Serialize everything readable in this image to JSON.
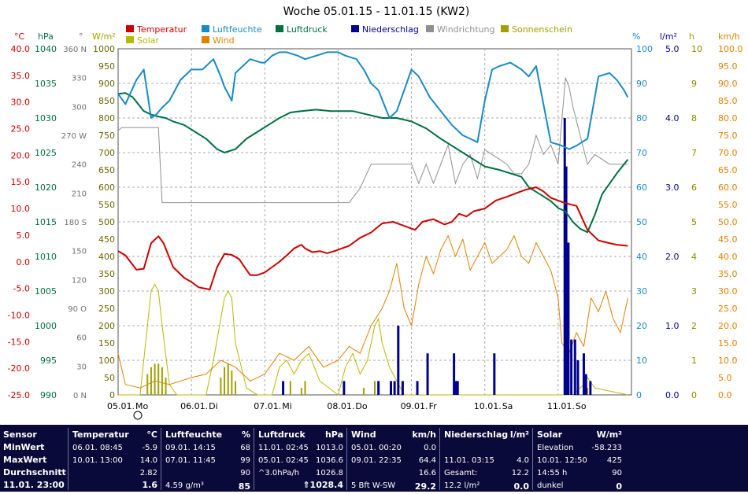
{
  "chart_data": {
    "type": "line",
    "title": "Woche 05.01.15 - 11.01.15 (KW2)",
    "x_range": [
      "2015-01-05 00:00",
      "2015-01-12 00:00"
    ],
    "x_day_labels": [
      {
        "date": "05.01.",
        "day": "Mo"
      },
      {
        "date": "06.01.",
        "day": "Di"
      },
      {
        "date": "07.01.",
        "day": "Mi"
      },
      {
        "date": "08.01.",
        "day": "Do"
      },
      {
        "date": "09.01.",
        "day": "Fr"
      },
      {
        "date": "10.01.",
        "day": "Sa"
      },
      {
        "date": "11.01.",
        "day": "So"
      }
    ],
    "legend": [
      {
        "name": "Temperatur",
        "color": "#cc0000"
      },
      {
        "name": "Luftfeuchte",
        "color": "#1a8ac4"
      },
      {
        "name": "Luftdruck",
        "color": "#007040"
      },
      {
        "name": "Niederschlag",
        "color": "#000090"
      },
      {
        "name": "Windrichtung",
        "color": "#909090"
      },
      {
        "name": "Sonnenschein",
        "color": "#a0a000"
      },
      {
        "name": "Solar",
        "color": "#b8b800"
      },
      {
        "name": "Wind",
        "color": "#e08000"
      }
    ],
    "axes": {
      "temperature": {
        "unit": "°C",
        "min": -25,
        "max": 40,
        "step": 5,
        "color": "#cc0000",
        "ticks": [
          "40.0",
          "35.0",
          "30.0",
          "25.0",
          "20.0",
          "15.0",
          "10.0",
          "5.0",
          "0.0",
          "-5.0",
          "-10.0",
          "-15.0",
          "-20.0",
          "-25.0"
        ]
      },
      "pressure": {
        "unit": "hPa",
        "min": 990,
        "max": 1040,
        "color": "#007040",
        "ticks": [
          "1040",
          "1035",
          "1030",
          "1025",
          "1020",
          "1015",
          "1010",
          "1005",
          "1000",
          "995",
          "990"
        ]
      },
      "direction": {
        "unit": "°",
        "color": "#707070",
        "ticks": [
          "360 N",
          "330",
          "300",
          "270 W",
          "240",
          "210",
          "180 S",
          "150",
          "120",
          "90 O",
          "60",
          "30",
          "0 N"
        ]
      },
      "solar": {
        "unit": "W/m²",
        "min": 0,
        "max": 1000,
        "color": "#a0a000",
        "ticks": [
          "1000",
          "950",
          "900",
          "850",
          "800",
          "750",
          "700",
          "650",
          "600",
          "550",
          "500",
          "450",
          "400",
          "350",
          "300",
          "250",
          "200",
          "150",
          "100",
          "50",
          "0"
        ]
      },
      "humidity": {
        "unit": "%",
        "min": 0,
        "max": 100,
        "color": "#1a8ac4",
        "ticks": [
          "100",
          "90",
          "80",
          "70",
          "60",
          "50",
          "40",
          "30",
          "20",
          "10",
          "0"
        ]
      },
      "rain": {
        "unit": "l/m²",
        "min": 0,
        "max": 5,
        "color": "#000090",
        "ticks": [
          "5.0",
          "4.0",
          "3.0",
          "2.0",
          "1.0",
          "0.0"
        ]
      },
      "sunshine": {
        "unit": "h",
        "min": 0,
        "max": 10,
        "color": "#a0a000",
        "ticks": [
          "10",
          "9",
          "8",
          "7",
          "6",
          "5",
          "4",
          "3",
          "2",
          "1",
          "0"
        ]
      },
      "wind": {
        "unit": "km/h",
        "min": 0,
        "max": 100,
        "color": "#e08000",
        "ticks": [
          "100.0",
          "95.0",
          "90.0",
          "85.0",
          "80.0",
          "75.0",
          "70.0",
          "65.0",
          "60.0",
          "55.0",
          "50.0",
          "45.0",
          "40.0",
          "35.0",
          "30.0",
          "25.0",
          "20.0",
          "15.0",
          "10.0",
          "5.0",
          "0.0"
        ]
      }
    },
    "series": [
      {
        "name": "Temperatur",
        "axis": "temperature",
        "color": "#cc0000",
        "x": [
          0,
          0.1,
          0.25,
          0.35,
          0.45,
          0.55,
          0.62,
          0.75,
          0.9,
          1.0,
          1.1,
          1.25,
          1.35,
          1.45,
          1.55,
          1.65,
          1.75,
          1.8,
          1.9,
          2.0,
          2.1,
          2.2,
          2.3,
          2.4,
          2.5,
          2.55,
          2.65,
          2.75,
          2.85,
          2.95,
          3.05,
          3.15,
          3.3,
          3.45,
          3.6,
          3.75,
          3.85,
          3.95,
          4.05,
          4.15,
          4.3,
          4.45,
          4.55,
          4.65,
          4.75,
          4.85,
          5.0,
          5.15,
          5.3,
          5.45,
          5.55,
          5.7,
          5.8,
          5.9,
          6.0,
          6.1,
          6.25,
          6.4,
          6.55,
          6.7,
          6.8,
          6.95
        ],
        "y": [
          2.0,
          1.2,
          -1.5,
          -1.3,
          3.5,
          4.8,
          3.5,
          -1.0,
          -3.0,
          -3.8,
          -4.8,
          -5.2,
          -1.0,
          1.5,
          1.3,
          0.5,
          -1.5,
          -2.5,
          -2.5,
          -2.0,
          -1.0,
          0.0,
          1.2,
          2.5,
          3.2,
          2.5,
          1.8,
          2.0,
          1.6,
          2.0,
          2.5,
          3.0,
          4.5,
          5.5,
          7.2,
          7.5,
          7.0,
          6.5,
          6.0,
          7.5,
          8.0,
          7.0,
          7.5,
          9.0,
          8.5,
          9.5,
          10.0,
          11.5,
          12.2,
          13.0,
          13.5,
          14.0,
          13.2,
          12.0,
          11.5,
          11.0,
          10.5,
          6.0,
          4.0,
          3.5,
          3.2,
          3.0
        ]
      },
      {
        "name": "Luftfeuchte",
        "axis": "humidity",
        "color": "#1a8ac4",
        "x": [
          0,
          0.1,
          0.25,
          0.35,
          0.45,
          0.52,
          0.6,
          0.7,
          0.85,
          1.0,
          1.15,
          1.3,
          1.4,
          1.45,
          1.55,
          1.6,
          1.7,
          1.8,
          1.95,
          2.0,
          2.1,
          2.2,
          2.3,
          2.45,
          2.55,
          2.7,
          2.85,
          3.0,
          3.1,
          3.25,
          3.35,
          3.45,
          3.55,
          3.7,
          3.8,
          3.9,
          4.0,
          4.1,
          4.25,
          4.4,
          4.55,
          4.7,
          4.8,
          4.9,
          5.0,
          5.1,
          5.2,
          5.35,
          5.5,
          5.6,
          5.7,
          5.8,
          5.9,
          6.05,
          6.15,
          6.25,
          6.4,
          6.55,
          6.7,
          6.8,
          6.9,
          6.95
        ],
        "y": [
          87,
          84,
          91,
          94,
          80,
          81,
          83,
          85,
          91,
          94,
          94,
          97,
          92,
          89,
          85,
          93,
          95,
          97,
          96,
          96,
          98,
          99,
          99,
          98,
          97,
          98,
          99,
          99,
          98,
          97,
          94,
          90,
          88,
          80,
          82,
          88,
          94,
          92,
          86,
          82,
          78,
          75,
          74,
          73,
          85,
          94,
          95,
          96,
          94,
          92,
          95,
          84,
          73,
          72,
          71,
          72,
          74,
          92,
          93,
          91,
          88,
          86
        ]
      },
      {
        "name": "Luftdruck",
        "axis": "pressure",
        "color": "#007040",
        "x": [
          0,
          0.1,
          0.2,
          0.35,
          0.45,
          0.55,
          0.65,
          0.75,
          0.9,
          1.05,
          1.2,
          1.35,
          1.45,
          1.6,
          1.75,
          1.9,
          2.05,
          2.2,
          2.35,
          2.5,
          2.7,
          2.9,
          3.05,
          3.2,
          3.4,
          3.6,
          3.8,
          4.0,
          4.2,
          4.4,
          4.55,
          4.7,
          4.85,
          5.0,
          5.2,
          5.35,
          5.5,
          5.6,
          5.75,
          5.9,
          6.0,
          6.1,
          6.2,
          6.3,
          6.4,
          6.5,
          6.6,
          6.8,
          6.95
        ],
        "y": [
          1033.5,
          1033.6,
          1033.0,
          1031.0,
          1030.5,
          1030.2,
          1030.0,
          1029.5,
          1029.0,
          1028.0,
          1027.0,
          1025.5,
          1025.0,
          1025.5,
          1027.0,
          1028.0,
          1029.0,
          1030.0,
          1030.8,
          1031.0,
          1031.2,
          1031.0,
          1031.0,
          1031.0,
          1030.5,
          1030.0,
          1030.0,
          1029.5,
          1028.5,
          1027.0,
          1026.0,
          1025.0,
          1024.0,
          1023.0,
          1022.5,
          1022.0,
          1021.5,
          1020.0,
          1019.0,
          1018.0,
          1017.0,
          1016.5,
          1015.0,
          1014.0,
          1013.5,
          1016.0,
          1019.0,
          1022.0,
          1024.0
        ]
      },
      {
        "name": "Niederschlag",
        "axis": "rain",
        "color": "#000090",
        "x": [
          2.25,
          3.08,
          3.55,
          3.72,
          3.77,
          3.82,
          3.88,
          4.08,
          4.22,
          4.58,
          4.61,
          4.63,
          5.13,
          6.09,
          6.11,
          6.14,
          6.18,
          6.23,
          6.27,
          6.35,
          6.38,
          6.44
        ],
        "y": [
          0.2,
          0.2,
          0.2,
          0.2,
          0.2,
          1.0,
          0.2,
          0.2,
          0.6,
          0.6,
          0.2,
          0.2,
          0.6,
          4.0,
          3.3,
          2.2,
          0.8,
          0.8,
          0.5,
          0.6,
          0.3,
          0.2
        ]
      },
      {
        "name": "Windrichtung",
        "axis": "direction",
        "color": "#909090",
        "x": [
          0,
          0.05,
          0.55,
          0.6,
          0.65,
          0.7,
          1.3,
          1.55,
          1.9,
          2.1,
          2.45,
          2.85,
          3.15,
          3.3,
          3.45,
          3.5,
          3.55,
          3.7,
          3.85,
          4.0,
          4.1,
          4.2,
          4.3,
          4.4,
          4.5,
          4.6,
          4.7,
          4.8,
          4.9,
          5.0,
          5.3,
          5.4,
          5.5,
          5.6,
          5.7,
          5.8,
          5.9,
          6.0,
          6.1,
          6.15,
          6.2,
          6.3,
          6.4,
          6.5,
          6.7,
          6.95
        ],
        "y": [
          275,
          278,
          278,
          200,
          200,
          200,
          200,
          200,
          200,
          200,
          200,
          200,
          200,
          215,
          240,
          240,
          240,
          240,
          240,
          240,
          220,
          240,
          220,
          240,
          260,
          220,
          240,
          250,
          225,
          255,
          240,
          230,
          230,
          240,
          270,
          250,
          260,
          240,
          330,
          320,
          300,
          270,
          240,
          250,
          240,
          240
        ]
      },
      {
        "name": "Solar",
        "axis": "solar",
        "color": "#b8b800",
        "x": [
          0,
          0.3,
          0.4,
          0.45,
          0.5,
          0.55,
          0.6,
          0.7,
          0.8,
          1.0,
          1.2,
          1.3,
          1.45,
          1.5,
          1.55,
          1.6,
          1.75,
          1.9,
          2.1,
          2.2,
          2.3,
          2.4,
          2.5,
          2.6,
          2.75,
          3.0,
          3.1,
          3.2,
          3.3,
          3.4,
          3.5,
          3.55,
          3.6,
          3.7,
          3.8,
          3.9,
          4.0,
          4.2,
          4.4,
          4.6,
          4.8,
          5.0,
          5.2,
          5.4,
          5.6,
          5.8,
          6.0,
          6.2,
          6.35,
          6.4,
          6.5,
          6.95
        ],
        "y": [
          0,
          0,
          200,
          300,
          320,
          300,
          200,
          30,
          0,
          0,
          0,
          100,
          280,
          300,
          280,
          150,
          20,
          0,
          0,
          80,
          100,
          60,
          100,
          120,
          40,
          0,
          80,
          120,
          60,
          100,
          200,
          220,
          150,
          80,
          40,
          0,
          0,
          0,
          0,
          0,
          0,
          0,
          0,
          0,
          0,
          0,
          0,
          0,
          30,
          50,
          20,
          0
        ]
      },
      {
        "name": "Sonnenschein",
        "axis": "sunshine",
        "color": "#a0a000",
        "x": [
          0.4,
          0.45,
          0.5,
          0.55,
          0.6,
          0.65,
          1.4,
          1.45,
          1.5,
          1.55,
          1.6,
          2.25,
          2.35,
          2.5,
          2.55,
          3.35,
          3.5,
          3.55,
          6.35,
          6.4
        ],
        "y": [
          0.6,
          0.8,
          0.9,
          0.9,
          0.8,
          0.5,
          0.5,
          0.8,
          0.9,
          0.7,
          0.4,
          0.2,
          0.4,
          0.2,
          0.4,
          0.2,
          0.4,
          0.3,
          0.3,
          0.2
        ]
      },
      {
        "name": "Wind",
        "axis": "wind",
        "color": "#e08000",
        "x": [
          0,
          0.1,
          0.3,
          0.5,
          0.7,
          1.0,
          1.2,
          1.4,
          1.6,
          1.8,
          2.0,
          2.2,
          2.4,
          2.6,
          2.8,
          3.0,
          3.15,
          3.3,
          3.45,
          3.6,
          3.7,
          3.8,
          3.9,
          4.0,
          4.1,
          4.2,
          4.3,
          4.4,
          4.5,
          4.6,
          4.7,
          4.8,
          4.9,
          5.0,
          5.1,
          5.2,
          5.3,
          5.4,
          5.5,
          5.6,
          5.7,
          5.8,
          5.9,
          6.0,
          6.05,
          6.15,
          6.25,
          6.35,
          6.45,
          6.55,
          6.65,
          6.75,
          6.85,
          6.95
        ],
        "y": [
          12,
          3,
          2,
          4,
          3,
          5,
          6,
          10,
          8,
          4,
          6,
          12,
          10,
          14,
          8,
          10,
          14,
          12,
          20,
          25,
          30,
          38,
          25,
          20,
          32,
          40,
          35,
          42,
          46,
          40,
          45,
          36,
          40,
          44,
          38,
          40,
          42,
          46,
          40,
          38,
          44,
          40,
          36,
          28,
          15,
          12,
          18,
          14,
          28,
          24,
          30,
          22,
          18,
          28
        ]
      }
    ],
    "grid": true
  },
  "stats": {
    "headers": {
      "sensor": "Sensor",
      "temperature": "Temperatur",
      "temperature_unit": "°C",
      "humidity": "Luftfeuchte",
      "humidity_unit": "%",
      "pressure": "Luftdruck",
      "pressure_unit": "hPa",
      "wind": "Wind",
      "wind_unit": "km/h",
      "rain": "Niederschlag",
      "rain_unit": "l/m²",
      "solar": "Solar",
      "solar_unit": "W/m²"
    },
    "row_labels": {
      "min": "MinWert",
      "max": "MaxWert",
      "avg": "Durchschnitt",
      "now": "11.01. 23:00"
    },
    "temperature": {
      "min_time": "06.01. 08:45",
      "min_val": "-5.9",
      "max_time": "10.01. 13:00",
      "max_val": "14.0",
      "avg": "2.82",
      "now": "1.6"
    },
    "humidity": {
      "min_time": "09.01. 14:15",
      "min_val": "68",
      "max_time": "07.01. 11:45",
      "max_val": "99",
      "avg": "90",
      "abs": "4.59 g/m³",
      "now": "85"
    },
    "pressure": {
      "min_time": "11.01. 02:45",
      "min_val": "1013.0",
      "max_time": "05.01. 02:45",
      "max_val": "1036.6",
      "trend_label": "^3.0hPa/h",
      "avg": "1026.8",
      "now": "1028.4"
    },
    "wind": {
      "min_time": "05.01. 00:20",
      "min_val": "0.0",
      "max_time": "09.01. 22:35",
      "max_val": "64.4",
      "avg": "16.6",
      "bft": "5 Bft W-SW",
      "now": "29.2"
    },
    "rain": {
      "max_time": "11.01. 03:15",
      "max_val": "4.0",
      "total_label": "Gesamt:",
      "total_val": "12.2",
      "now_label": "12.2 l/m²",
      "now": "0.0"
    },
    "solar": {
      "elev_label": "Elevation",
      "elev_val": "-58.233",
      "max_time": "10.01. 12:50",
      "max_val": "425",
      "sun_hours": "14:55 h",
      "sun_val": "90",
      "state": "dunkel",
      "now": "0"
    }
  }
}
